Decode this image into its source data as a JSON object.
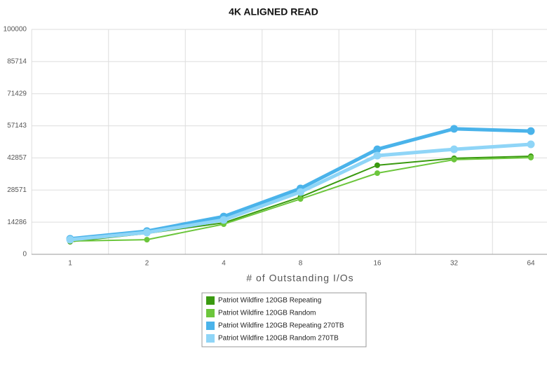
{
  "chart_data": {
    "type": "line",
    "title": "4K ALIGNED READ",
    "x_label": "# of Outstanding I/Os",
    "categories": [
      "1",
      "2",
      "4",
      "8",
      "16",
      "32",
      "64"
    ],
    "series": [
      {
        "name": "Patriot Wildfire 120GB Repeating",
        "color": "#3a9a10",
        "values": [
          5600,
          9300,
          14000,
          25500,
          39600,
          42700,
          43600
        ]
      },
      {
        "name": "Patriot Wildfire 120GB Random",
        "color": "#6cc63c",
        "values": [
          5900,
          6500,
          13400,
          24600,
          36100,
          42100,
          43000
        ]
      },
      {
        "name": "Patriot Wildfire 120GB Repeating 270TB",
        "color": "#4ab3ea",
        "values": [
          6900,
          10300,
          16800,
          29300,
          46700,
          55800,
          54800
        ]
      },
      {
        "name": "Patriot Wildfire 120GB Random 270TB",
        "color": "#8fd5f7",
        "values": [
          6500,
          9700,
          15300,
          27700,
          43900,
          46700,
          48900
        ]
      }
    ],
    "ylim": [
      0,
      100000
    ],
    "yticks": [
      0,
      14286,
      28571,
      42857,
      57143,
      71429,
      85714,
      100000
    ],
    "grid": true
  }
}
